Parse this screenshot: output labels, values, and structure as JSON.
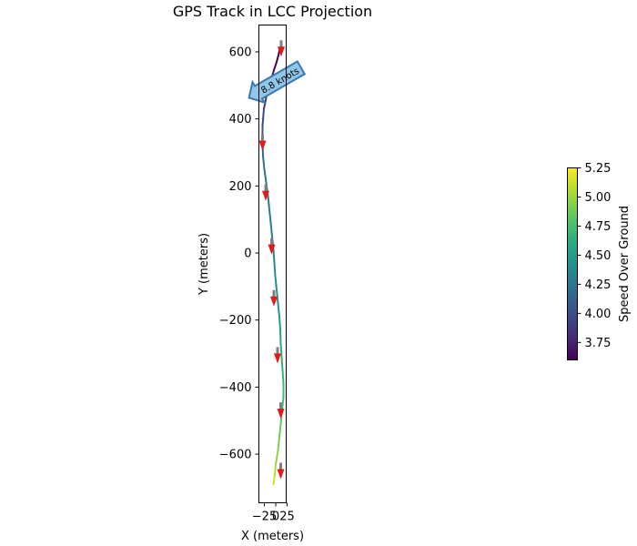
{
  "chart_data": {
    "type": "line",
    "title": "GPS Track in LCC Projection",
    "xlabel": "X (meters)",
    "ylabel": "Y (meters)",
    "xlim": [
      -37,
      23
    ],
    "ylim": [
      -745,
      680
    ],
    "xticks": [
      -25,
      0,
      25
    ],
    "xtick_labels": [
      "−25",
      "0",
      "25"
    ],
    "yticks": [
      600,
      400,
      200,
      0,
      -200,
      -400,
      -600
    ],
    "ytick_labels": [
      "600",
      "400",
      "200",
      "0",
      "−200",
      "−400",
      "−600"
    ],
    "grid": false,
    "track": {
      "x": [
        -5,
        -2,
        0,
        5,
        8,
        11,
        14,
        17,
        17,
        15,
        13,
        11,
        10,
        8,
        5,
        2,
        -1,
        -3,
        -5,
        -8,
        -11,
        -14,
        -17,
        -21,
        -25,
        -28,
        -29,
        -29,
        -26,
        -20,
        -12,
        -4,
        2,
        6,
        9
      ],
      "y": [
        -690,
        -660,
        -630,
        -590,
        -550,
        -510,
        -470,
        -430,
        -390,
        -350,
        -310,
        -270,
        -230,
        -190,
        -150,
        -110,
        -70,
        -30,
        10,
        50,
        90,
        130,
        170,
        210,
        250,
        290,
        330,
        380,
        430,
        470,
        510,
        545,
        570,
        590,
        610
      ],
      "speed": [
        5.15,
        5.1,
        5.0,
        4.95,
        4.9,
        4.85,
        4.8,
        4.75,
        4.72,
        4.7,
        4.65,
        4.6,
        4.55,
        4.5,
        4.45,
        4.45,
        4.4,
        4.4,
        4.35,
        4.35,
        4.3,
        4.3,
        4.25,
        4.25,
        4.2,
        4.15,
        4.1,
        4.0,
        3.9,
        3.8,
        3.7,
        3.65,
        3.6,
        3.6,
        3.6
      ]
    },
    "arrows": [
      {
        "x": 12,
        "y": 610
      },
      {
        "x": -29,
        "y": 330
      },
      {
        "x": -22,
        "y": 180
      },
      {
        "x": -9,
        "y": 20
      },
      {
        "x": -4,
        "y": -135
      },
      {
        "x": 4,
        "y": -305
      },
      {
        "x": 11,
        "y": -470
      },
      {
        "x": 11,
        "y": -650
      }
    ],
    "annotation": {
      "text": "8.8 knots",
      "x": 14,
      "y": 520,
      "angle_deg": -30,
      "fill": "#8ec7e8",
      "edge": "#3a7ab0"
    },
    "colorbar": {
      "label": "Speed Over Ground",
      "min": 3.6,
      "max": 5.25,
      "ticks": [
        3.75,
        4.0,
        4.25,
        4.5,
        4.75,
        5.0,
        5.25
      ],
      "tick_labels": [
        "3.75",
        "4.00",
        "4.25",
        "4.50",
        "4.75",
        "5.00",
        "5.25"
      ],
      "colormap": "viridis"
    },
    "colors": {
      "arrow": "#e31a1c",
      "arrow_shaft": "#7f7f7f"
    }
  }
}
